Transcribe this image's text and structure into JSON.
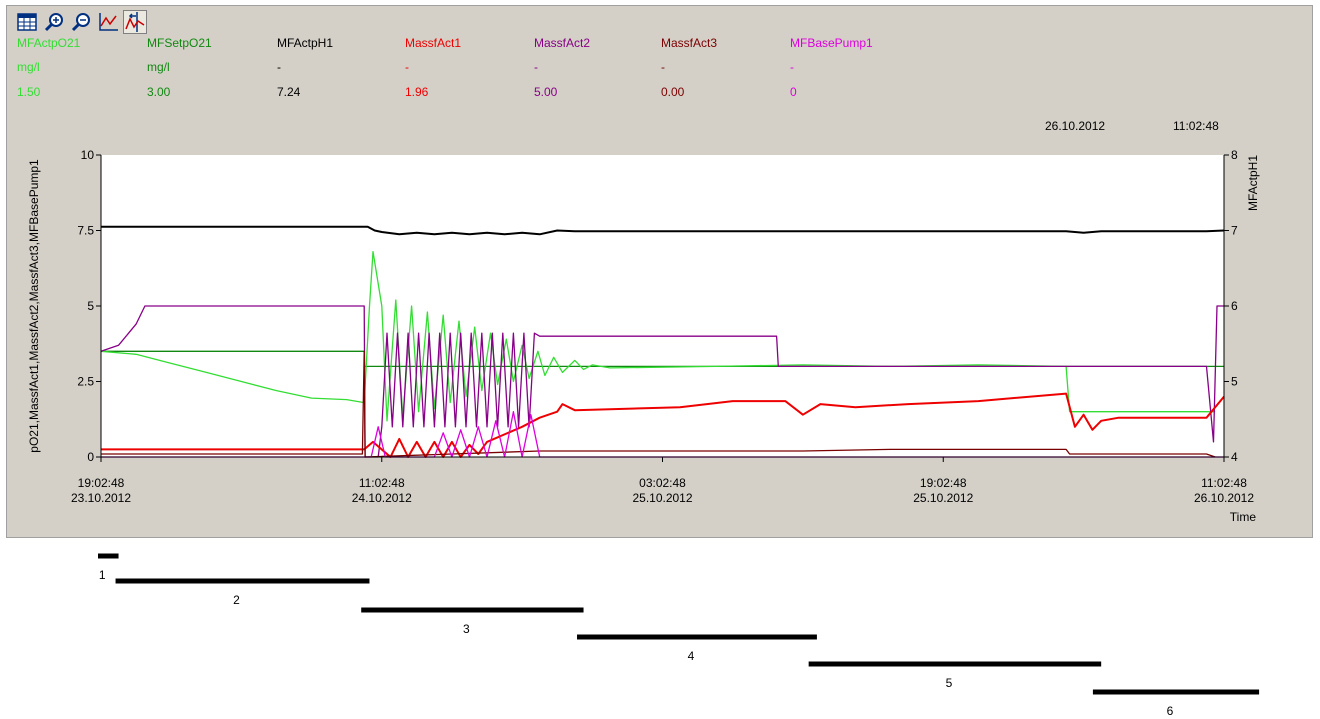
{
  "toolbar": {
    "buttons": [
      {
        "icon": "table-icon",
        "active": false
      },
      {
        "icon": "zoom-in-icon",
        "active": false
      },
      {
        "icon": "zoom-out-icon",
        "active": false
      },
      {
        "icon": "chart-axes-icon",
        "active": false
      },
      {
        "icon": "trend-cursor-icon",
        "active": true
      }
    ]
  },
  "legend": [
    {
      "name": "MFActpO21",
      "unit": "mg/l",
      "value": "1.50",
      "color": "#33dd33"
    },
    {
      "name": "MFSetpO21",
      "unit": "mg/l",
      "value": "3.00",
      "color": "#118811"
    },
    {
      "name": "MFActpH1",
      "unit": "-",
      "value": "7.24",
      "color": "#000000"
    },
    {
      "name": "MassfAct1",
      "unit": "-",
      "value": "1.96",
      "color": "#ee0000"
    },
    {
      "name": "MassfAct2",
      "unit": "-",
      "value": "5.00",
      "color": "#880088"
    },
    {
      "name": "MassfAct3",
      "unit": "-",
      "value": "0.00",
      "color": "#7a0000"
    },
    {
      "name": "MFBasePump1",
      "unit": "-",
      "value": "0",
      "color": "#dd00dd"
    }
  ],
  "current": {
    "date": "26.10.2012",
    "time": "11:02:48"
  },
  "chart_data": {
    "type": "line",
    "ylabel": "pO21,MassfAct1,MassfAct2,MassfAct3,MFBasePump1",
    "y2label": "MFActpH1",
    "xlabel": "Time",
    "ylim": [
      0,
      10
    ],
    "y2lim": [
      4,
      8
    ],
    "xlim_hours": [
      0,
      64
    ],
    "yticks": [
      "0",
      "2.5",
      "5",
      "7.5",
      "10"
    ],
    "y2ticks": [
      "4",
      "5",
      "6",
      "7",
      "8"
    ],
    "xticks": [
      {
        "h": 0,
        "time": "19:02:48",
        "date": "23.10.2012"
      },
      {
        "h": 16,
        "time": "11:02:48",
        "date": "24.10.2012"
      },
      {
        "h": 32,
        "time": "03:02:48",
        "date": "25.10.2012"
      },
      {
        "h": 48,
        "time": "19:02:48",
        "date": "25.10.2012"
      },
      {
        "h": 64,
        "time": "11:02:48",
        "date": "26.10.2012"
      }
    ],
    "series": [
      {
        "name": "MFActpH1",
        "axis": "right",
        "color": "#000000",
        "points": [
          [
            0,
            7.05
          ],
          [
            15.2,
            7.05
          ],
          [
            15.6,
            7.0
          ],
          [
            16,
            6.98
          ],
          [
            17,
            6.95
          ],
          [
            18,
            6.97
          ],
          [
            19,
            6.95
          ],
          [
            20,
            6.97
          ],
          [
            21,
            6.95
          ],
          [
            22,
            6.97
          ],
          [
            23,
            6.95
          ],
          [
            24,
            6.97
          ],
          [
            25,
            6.95
          ],
          [
            26,
            7.0
          ],
          [
            27,
            6.99
          ],
          [
            30,
            6.99
          ],
          [
            35,
            6.99
          ],
          [
            40,
            6.99
          ],
          [
            45,
            6.99
          ],
          [
            50,
            6.99
          ],
          [
            55,
            6.99
          ],
          [
            56,
            6.97
          ],
          [
            57,
            6.99
          ],
          [
            63,
            6.99
          ],
          [
            64,
            7.0
          ]
        ]
      },
      {
        "name": "MFSetpO21",
        "axis": "left",
        "color": "#118811",
        "points": [
          [
            0,
            3.5
          ],
          [
            15,
            3.5
          ],
          [
            15.01,
            3.0
          ],
          [
            64,
            3.0
          ]
        ]
      },
      {
        "name": "MFActpO21",
        "axis": "left",
        "color": "#33dd33",
        "points": [
          [
            0,
            3.5
          ],
          [
            2,
            3.4
          ],
          [
            4,
            3.1
          ],
          [
            6,
            2.8
          ],
          [
            8,
            2.5
          ],
          [
            10,
            2.2
          ],
          [
            12,
            1.95
          ],
          [
            14,
            1.9
          ],
          [
            15,
            1.8
          ],
          [
            15.3,
            5.0
          ],
          [
            15.5,
            6.8
          ],
          [
            16,
            5.0
          ],
          [
            16.3,
            1.2
          ],
          [
            16.8,
            5.2
          ],
          [
            17.2,
            1.3
          ],
          [
            17.7,
            5.0
          ],
          [
            18.1,
            1.5
          ],
          [
            18.6,
            4.8
          ],
          [
            19,
            1.6
          ],
          [
            19.5,
            4.7
          ],
          [
            19.9,
            1.8
          ],
          [
            20.4,
            4.5
          ],
          [
            20.8,
            2.0
          ],
          [
            21.3,
            4.3
          ],
          [
            21.7,
            2.2
          ],
          [
            22.2,
            4.1
          ],
          [
            22.6,
            2.4
          ],
          [
            23.1,
            3.9
          ],
          [
            23.5,
            2.5
          ],
          [
            24,
            3.7
          ],
          [
            24.4,
            2.6
          ],
          [
            24.9,
            3.5
          ],
          [
            25.3,
            2.7
          ],
          [
            25.8,
            3.3
          ],
          [
            26.3,
            2.8
          ],
          [
            27,
            3.2
          ],
          [
            27.5,
            2.9
          ],
          [
            28,
            3.05
          ],
          [
            29,
            2.95
          ],
          [
            35,
            3.0
          ],
          [
            40,
            3.05
          ],
          [
            45,
            3.0
          ],
          [
            50,
            3.05
          ],
          [
            55,
            3.0
          ],
          [
            55.2,
            1.5
          ],
          [
            63,
            1.5
          ],
          [
            63.5,
            1.5
          ]
        ]
      },
      {
        "name": "MassfAct2",
        "axis": "left",
        "color": "#880088",
        "points": [
          [
            0,
            3.5
          ],
          [
            1,
            3.7
          ],
          [
            2,
            4.4
          ],
          [
            2.5,
            5.0
          ],
          [
            15,
            5.0
          ],
          [
            15.05,
            0.0
          ],
          [
            15.8,
            0.0
          ],
          [
            16,
            1.0
          ],
          [
            16.3,
            4.1
          ],
          [
            16.6,
            1.0
          ],
          [
            16.9,
            4.1
          ],
          [
            17.2,
            1.0
          ],
          [
            17.5,
            4.1
          ],
          [
            17.8,
            1.0
          ],
          [
            18.1,
            4.1
          ],
          [
            18.4,
            1.0
          ],
          [
            18.7,
            4.1
          ],
          [
            19,
            1.0
          ],
          [
            19.3,
            4.1
          ],
          [
            19.6,
            1.0
          ],
          [
            19.9,
            4.1
          ],
          [
            20.2,
            1.0
          ],
          [
            20.5,
            4.1
          ],
          [
            20.8,
            1.0
          ],
          [
            21.1,
            4.1
          ],
          [
            21.4,
            1.0
          ],
          [
            21.7,
            4.1
          ],
          [
            22,
            1.0
          ],
          [
            22.3,
            4.1
          ],
          [
            22.6,
            1.0
          ],
          [
            22.9,
            4.1
          ],
          [
            23.2,
            1.0
          ],
          [
            23.5,
            4.1
          ],
          [
            23.8,
            1.0
          ],
          [
            24.1,
            4.1
          ],
          [
            24.4,
            1.0
          ],
          [
            24.7,
            4.1
          ],
          [
            25,
            4.0
          ],
          [
            38.5,
            4.0
          ],
          [
            38.6,
            3.0
          ],
          [
            63,
            3.0
          ],
          [
            63.4,
            0.5
          ],
          [
            63.6,
            5.0
          ],
          [
            64,
            5.0
          ]
        ]
      },
      {
        "name": "MassfAct1",
        "axis": "left",
        "color": "#ee0000",
        "points": [
          [
            0,
            0.25
          ],
          [
            15,
            0.25
          ],
          [
            15.5,
            0.5
          ],
          [
            16.5,
            0.0
          ],
          [
            17,
            0.6
          ],
          [
            17.5,
            0.0
          ],
          [
            18,
            0.5
          ],
          [
            18.5,
            0.0
          ],
          [
            19,
            0.5
          ],
          [
            19.5,
            0.0
          ],
          [
            20,
            0.5
          ],
          [
            20.5,
            0.0
          ],
          [
            21,
            0.4
          ],
          [
            21.5,
            0.1
          ],
          [
            22,
            0.5
          ],
          [
            24,
            1.0
          ],
          [
            25,
            1.3
          ],
          [
            26,
            1.5
          ],
          [
            26.3,
            1.75
          ],
          [
            27,
            1.55
          ],
          [
            30,
            1.6
          ],
          [
            33,
            1.65
          ],
          [
            36,
            1.85
          ],
          [
            39,
            1.85
          ],
          [
            40,
            1.4
          ],
          [
            41,
            1.75
          ],
          [
            43,
            1.65
          ],
          [
            46,
            1.75
          ],
          [
            50,
            1.85
          ],
          [
            55,
            2.1
          ],
          [
            55.5,
            1.0
          ],
          [
            56,
            1.4
          ],
          [
            56.5,
            0.9
          ],
          [
            57,
            1.2
          ],
          [
            58,
            1.3
          ],
          [
            63,
            1.3
          ],
          [
            64,
            2.0
          ]
        ]
      },
      {
        "name": "MassfAct3",
        "axis": "left",
        "color": "#7a0000",
        "points": [
          [
            0,
            0.1
          ],
          [
            14.9,
            0.1
          ],
          [
            15,
            3.5
          ],
          [
            15.05,
            0.0
          ],
          [
            20,
            0.1
          ],
          [
            25,
            0.2
          ],
          [
            30,
            0.2
          ],
          [
            35,
            0.2
          ],
          [
            40,
            0.2
          ],
          [
            45,
            0.25
          ],
          [
            50,
            0.25
          ],
          [
            55,
            0.25
          ],
          [
            55.2,
            0.1
          ],
          [
            63,
            0.1
          ],
          [
            63.5,
            0.0
          ]
        ]
      },
      {
        "name": "MFBasePump1",
        "axis": "left",
        "color": "#dd00dd",
        "points": [
          [
            0,
            0.0
          ],
          [
            15.4,
            0.0
          ],
          [
            15.8,
            1.0
          ],
          [
            16.2,
            0.0
          ],
          [
            19,
            0.0
          ],
          [
            19.5,
            0.8
          ],
          [
            20,
            0.0
          ],
          [
            20.5,
            0.9
          ],
          [
            21,
            0.0
          ],
          [
            21.5,
            1.0
          ],
          [
            22,
            0.0
          ],
          [
            22.5,
            1.2
          ],
          [
            23,
            0.0
          ],
          [
            23.5,
            1.5
          ],
          [
            24,
            0.0
          ],
          [
            24.5,
            1.4
          ],
          [
            25,
            0.0
          ],
          [
            26,
            0.0
          ],
          [
            64,
            0.0
          ]
        ]
      }
    ],
    "phases": [
      {
        "label": "1",
        "start": 0,
        "end": 1
      },
      {
        "label": "2",
        "start": 1,
        "end": 15.3
      },
      {
        "label": "3",
        "start": 15,
        "end": 27.5
      },
      {
        "label": "4",
        "start": 27.3,
        "end": 40.8
      },
      {
        "label": "5",
        "start": 40.5,
        "end": 57
      },
      {
        "label": "6",
        "start": 56.7,
        "end": 66
      }
    ]
  }
}
